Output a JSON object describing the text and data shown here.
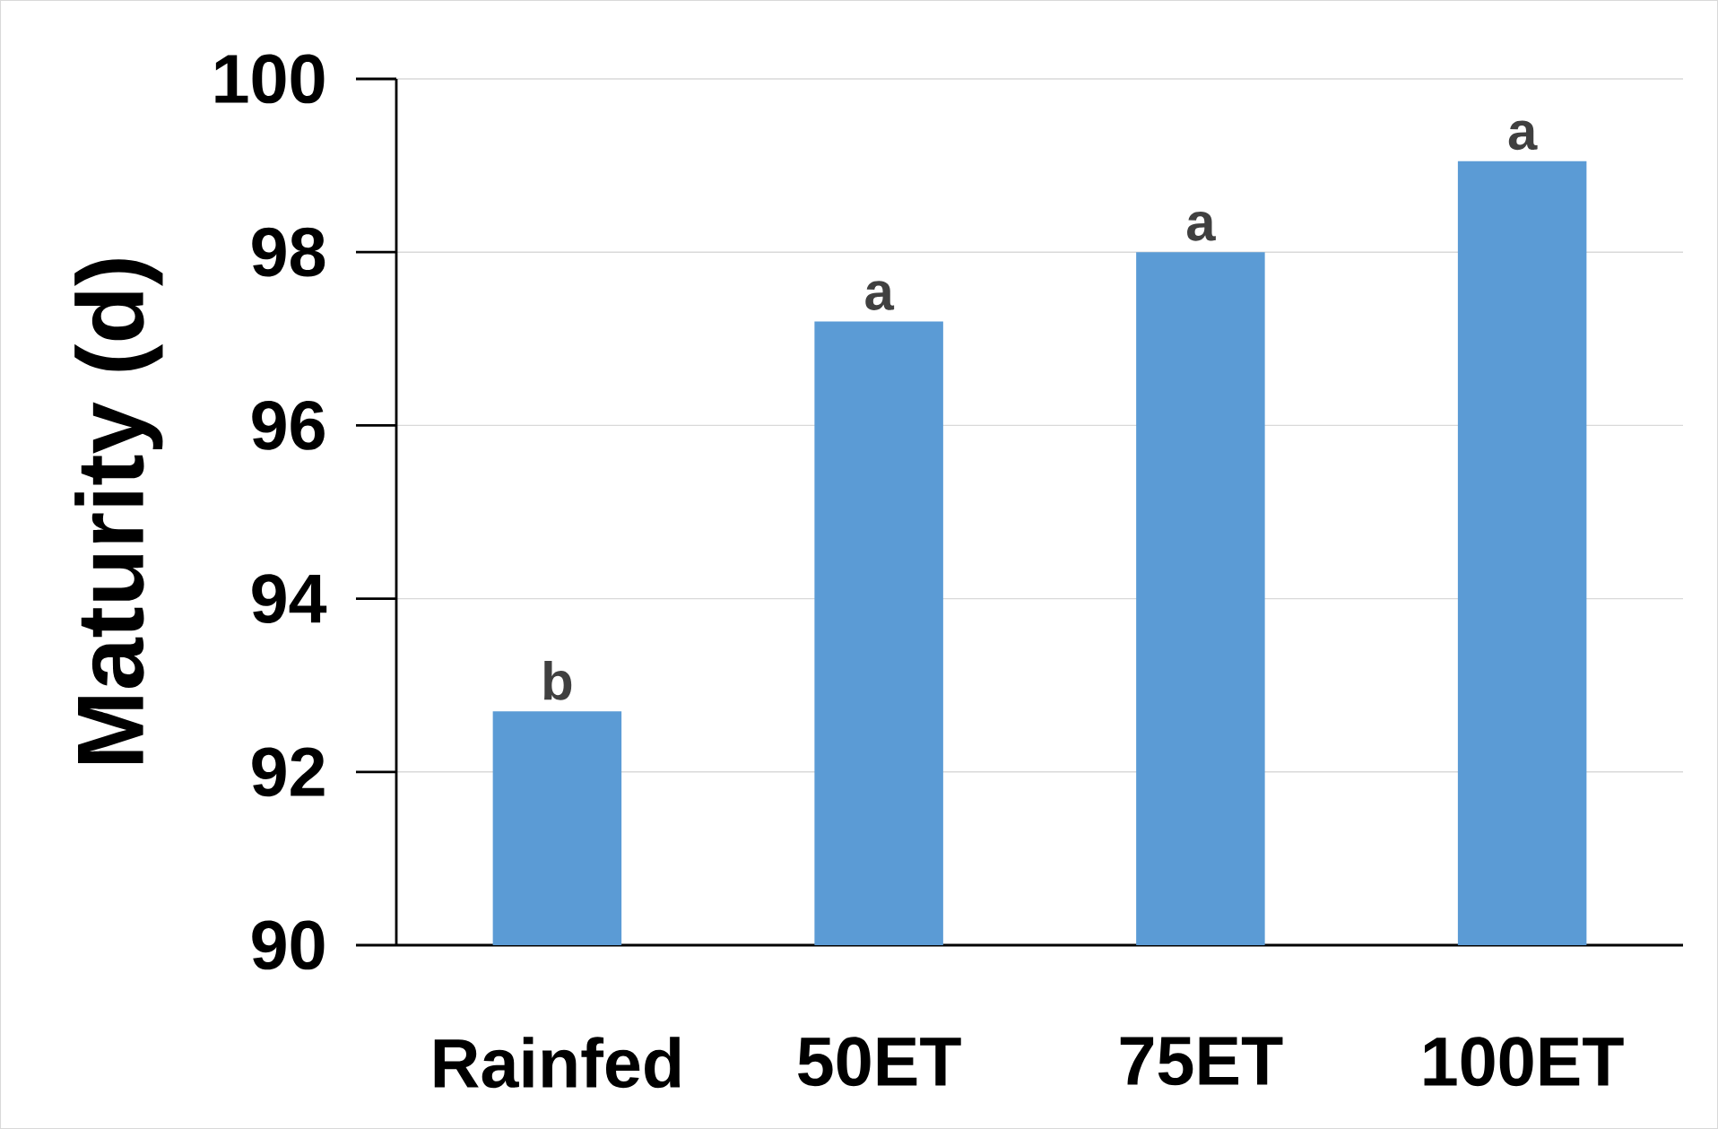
{
  "chart_data": {
    "type": "bar",
    "ylabel": "Maturity (d)",
    "categories": [
      "Rainfed",
      "50ET",
      "75ET",
      "100ET"
    ],
    "values": [
      92.7,
      97.2,
      98.0,
      99.05
    ],
    "color": "#5b9bd5",
    "ylim": [
      90,
      100
    ],
    "yticks": [
      90,
      92,
      94,
      96,
      98,
      100
    ],
    "grid": "y",
    "annotations": [
      {
        "text": "b",
        "x": "Rainfed",
        "y": 92.7
      },
      {
        "text": "a",
        "x": "50ET",
        "y": 97.2
      },
      {
        "text": "a",
        "x": "75ET",
        "y": 98.0
      },
      {
        "text": "a",
        "x": "100ET",
        "y": 99.05
      }
    ]
  }
}
